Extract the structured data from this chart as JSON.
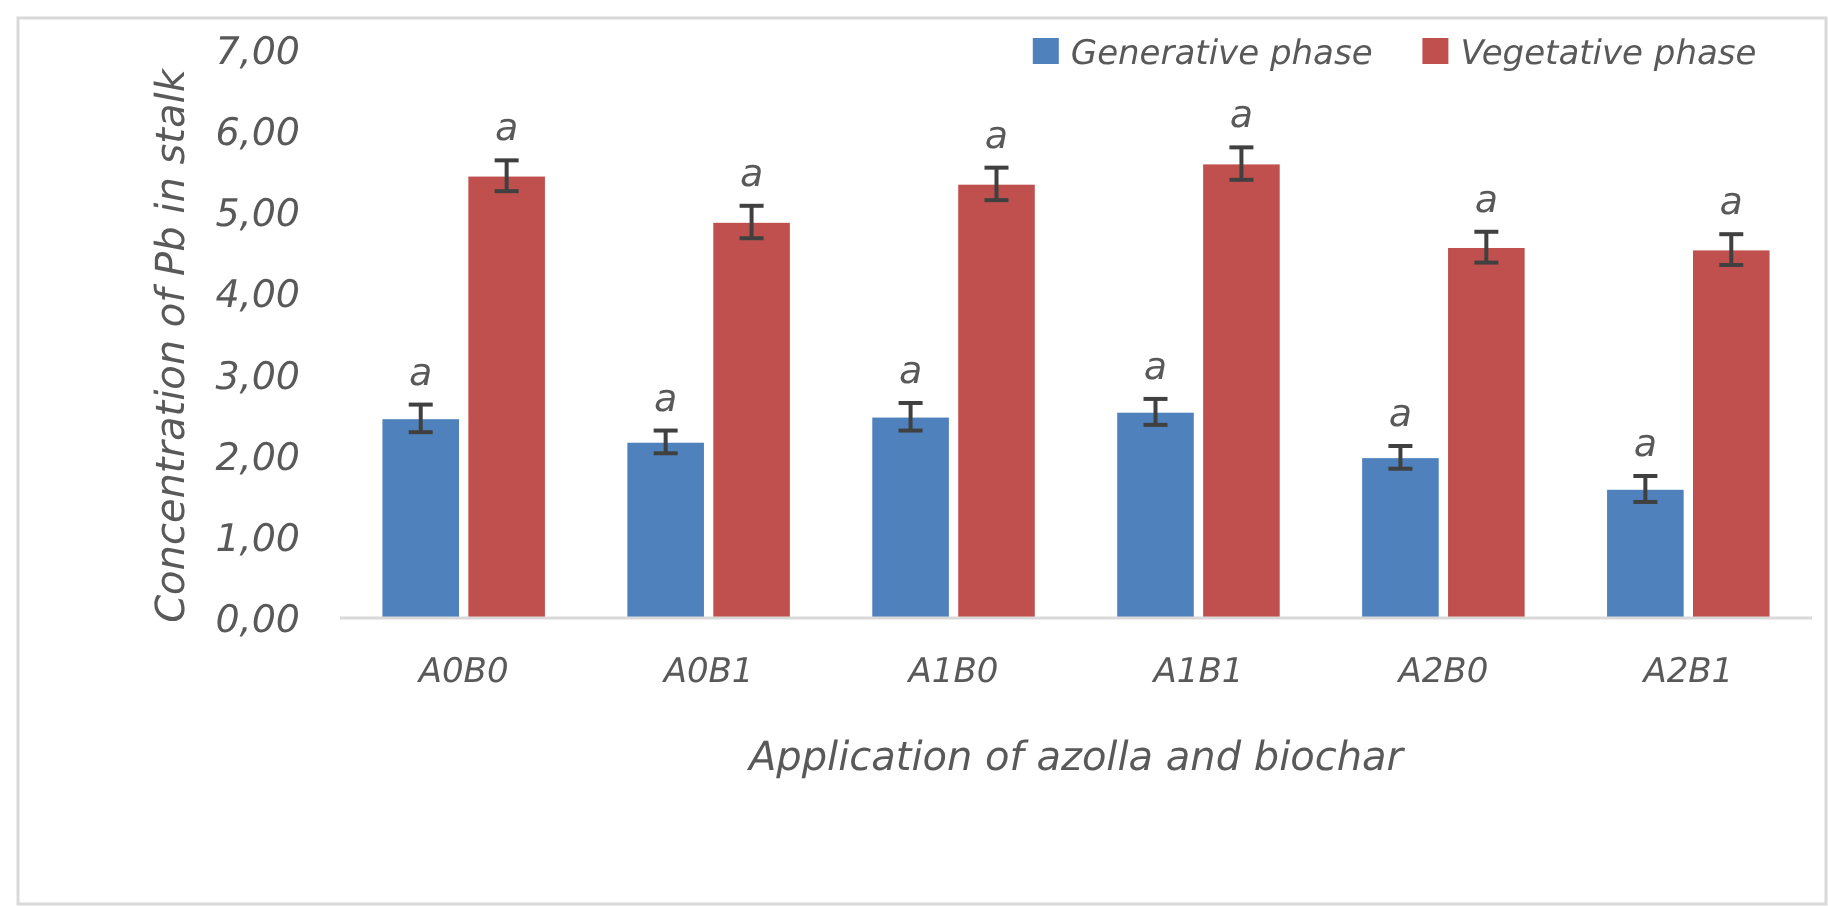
{
  "chart_data": {
    "type": "bar",
    "xlabel": "Application of azolla and biochar",
    "ylabel": "Concentration of Pb in stalk",
    "categories": [
      "A0B0",
      "A0B1",
      "A1B0",
      "A1B1",
      "A2B0",
      "A2B1"
    ],
    "series": [
      {
        "name": "Generative phase",
        "color": "#4f81bd",
        "values": [
          2.46,
          2.17,
          2.48,
          2.54,
          1.98,
          1.59
        ],
        "errors": [
          0.17,
          0.14,
          0.17,
          0.16,
          0.14,
          0.16
        ]
      },
      {
        "name": "Vegetative phase",
        "color": "#c0504d",
        "values": [
          5.45,
          4.88,
          5.35,
          5.6,
          4.57,
          4.54
        ],
        "errors": [
          0.19,
          0.2,
          0.2,
          0.2,
          0.19,
          0.19
        ]
      }
    ],
    "ylim": [
      0,
      7
    ],
    "yticks": [
      {
        "value": 0,
        "label": "0,00"
      },
      {
        "value": 1,
        "label": "1,00"
      },
      {
        "value": 2,
        "label": "2,00"
      },
      {
        "value": 3,
        "label": "3,00"
      },
      {
        "value": 4,
        "label": "4,00"
      },
      {
        "value": 5,
        "label": "5,00"
      },
      {
        "value": 6,
        "label": "6,00"
      },
      {
        "value": 7,
        "label": "7,00"
      }
    ],
    "annotations": [
      {
        "text": "a",
        "x": "A0B0",
        "y": 2.46
      },
      {
        "text": "a",
        "x": "A0B0",
        "y": 5.45
      },
      {
        "text": "a",
        "x": "A0B1",
        "y": 2.17
      },
      {
        "text": "a",
        "x": "A0B1",
        "y": 4.88
      },
      {
        "text": "a",
        "x": "A1B0",
        "y": 2.48
      },
      {
        "text": "a",
        "x": "A1B0",
        "y": 5.35
      },
      {
        "text": "a",
        "x": "A1B1",
        "y": 2.54
      },
      {
        "text": "a",
        "x": "A1B1",
        "y": 5.6
      },
      {
        "text": "a",
        "x": "A2B0",
        "y": 1.98
      },
      {
        "text": "a",
        "x": "A2B0",
        "y": 4.57
      },
      {
        "text": "a",
        "x": "A2B1",
        "y": 1.59
      },
      {
        "text": "a",
        "x": "A2B1",
        "y": 4.54
      }
    ],
    "grid": false,
    "legend": "top right"
  }
}
